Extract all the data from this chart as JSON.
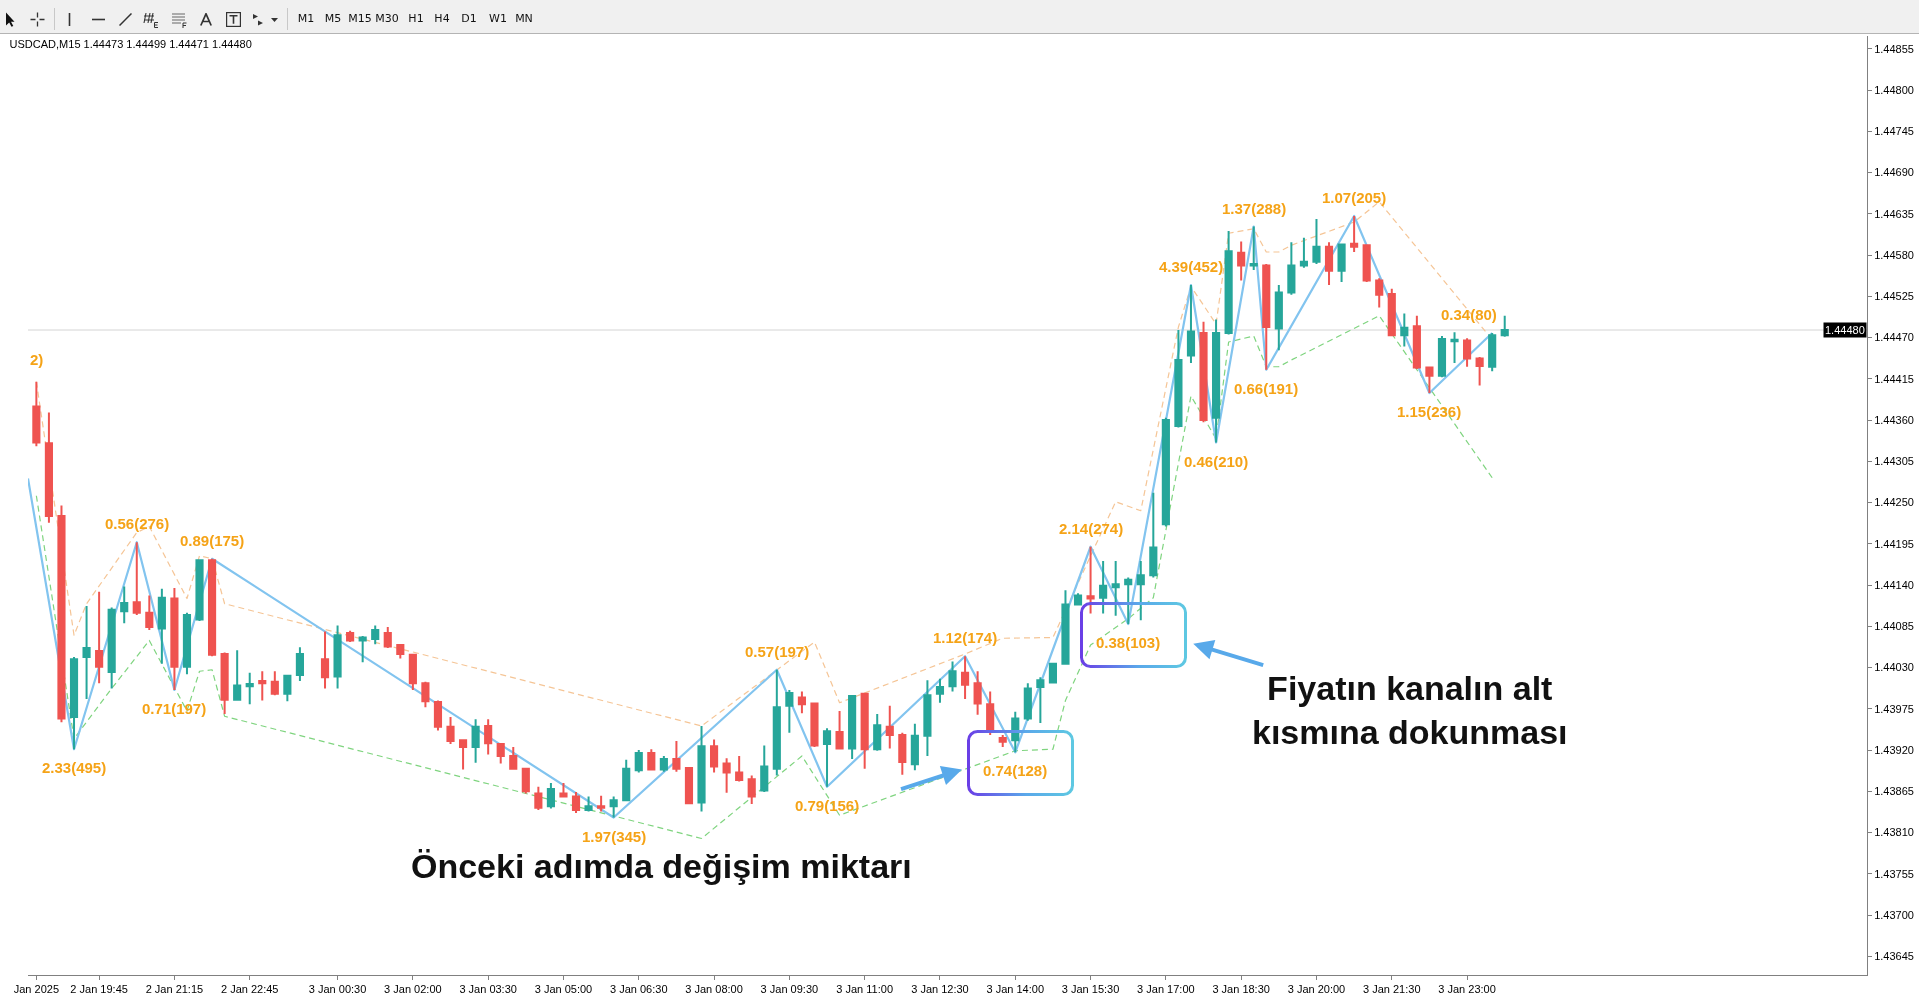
{
  "chart_data": {
    "type": "candlestick",
    "title": "USDCAD,M15 1.44473 1.44499 1.44471 1.44480",
    "x": [
      "2025-01-02T18:30",
      "2025-01-02T18:45",
      "2025-01-02T19:00",
      "2025-01-02T19:15",
      "2025-01-02T19:30",
      "2025-01-02T19:45",
      "2025-01-02T20:00",
      "2025-01-02T20:15",
      "2025-01-02T20:30",
      "2025-01-02T20:45",
      "2025-01-02T21:00",
      "2025-01-02T21:15",
      "2025-01-02T21:30",
      "2025-01-02T21:45",
      "2025-01-02T22:00",
      "2025-01-02T22:15",
      "2025-01-02T22:30",
      "2025-01-02T22:45",
      "2025-01-02T23:00",
      "2025-01-02T23:15",
      "2025-01-02T23:30",
      "2025-01-02T23:45",
      "2025-01-03T00:15",
      "2025-01-03T00:30",
      "2025-01-03T00:45",
      "2025-01-03T01:00",
      "2025-01-03T01:15",
      "2025-01-03T01:30",
      "2025-01-03T01:45",
      "2025-01-03T02:00",
      "2025-01-03T02:15",
      "2025-01-03T02:30",
      "2025-01-03T02:45",
      "2025-01-03T03:00",
      "2025-01-03T03:15",
      "2025-01-03T03:30",
      "2025-01-03T03:45",
      "2025-01-03T04:00",
      "2025-01-03T04:15",
      "2025-01-03T04:30",
      "2025-01-03T04:45",
      "2025-01-03T05:00",
      "2025-01-03T05:15",
      "2025-01-03T05:30",
      "2025-01-03T05:45",
      "2025-01-03T06:00",
      "2025-01-03T06:15",
      "2025-01-03T06:30",
      "2025-01-03T06:45",
      "2025-01-03T07:00",
      "2025-01-03T07:15",
      "2025-01-03T07:30",
      "2025-01-03T07:45",
      "2025-01-03T08:00",
      "2025-01-03T08:15",
      "2025-01-03T08:30",
      "2025-01-03T08:45",
      "2025-01-03T09:00",
      "2025-01-03T09:15",
      "2025-01-03T09:30",
      "2025-01-03T09:45",
      "2025-01-03T10:00",
      "2025-01-03T10:15",
      "2025-01-03T10:30",
      "2025-01-03T10:45",
      "2025-01-03T11:00",
      "2025-01-03T11:15",
      "2025-01-03T11:30",
      "2025-01-03T11:45",
      "2025-01-03T12:00",
      "2025-01-03T12:15",
      "2025-01-03T12:30",
      "2025-01-03T12:45",
      "2025-01-03T13:00",
      "2025-01-03T13:15",
      "2025-01-03T13:30",
      "2025-01-03T13:45",
      "2025-01-03T14:00",
      "2025-01-03T14:15",
      "2025-01-03T14:30",
      "2025-01-03T14:45",
      "2025-01-03T15:00",
      "2025-01-03T15:15",
      "2025-01-03T15:30",
      "2025-01-03T15:45",
      "2025-01-03T16:00",
      "2025-01-03T16:15",
      "2025-01-03T16:30",
      "2025-01-03T16:45",
      "2025-01-03T17:00",
      "2025-01-03T17:15",
      "2025-01-03T17:30",
      "2025-01-03T17:45",
      "2025-01-03T18:00",
      "2025-01-03T18:15",
      "2025-01-03T18:30",
      "2025-01-03T18:45",
      "2025-01-03T19:00",
      "2025-01-03T19:15",
      "2025-01-03T19:30",
      "2025-01-03T19:45",
      "2025-01-03T20:00",
      "2025-01-03T20:15",
      "2025-01-03T20:30",
      "2025-01-03T20:45",
      "2025-01-03T21:00",
      "2025-01-03T21:15",
      "2025-01-03T21:30",
      "2025-01-03T21:45",
      "2025-01-03T22:00",
      "2025-01-03T22:15",
      "2025-01-03T22:30",
      "2025-01-03T22:45",
      "2025-01-03T23:00",
      "2025-01-03T23:15",
      "2025-01-03T23:30",
      "2025-01-03T23:45"
    ],
    "ohlc": [
      [
        1.44378,
        1.44411,
        1.44325,
        1.4433
      ],
      [
        1.44329,
        1.4437,
        1.44223,
        1.44232
      ],
      [
        1.44232,
        1.44246,
        1.43957,
        1.43962
      ],
      [
        1.43964,
        1.44044,
        1.43921,
        1.44041
      ],
      [
        1.44044,
        1.44112,
        1.43988,
        1.44056
      ],
      [
        1.44052,
        1.44131,
        1.44009,
        1.44031
      ],
      [
        1.44024,
        1.4411,
        1.44002,
        1.44107
      ],
      [
        1.44105,
        1.44138,
        1.44089,
        1.44116
      ],
      [
        1.44117,
        1.44197,
        1.441,
        1.44103
      ],
      [
        1.44103,
        1.44126,
        1.4408,
        1.44084
      ],
      [
        1.44082,
        1.44135,
        1.44035,
        1.44123
      ],
      [
        1.44122,
        1.44136,
        1.44,
        1.44031
      ],
      [
        1.44031,
        1.44103,
        1.44021,
        1.441
      ],
      [
        1.44094,
        1.44174,
        1.44092,
        1.44173
      ],
      [
        1.44173,
        1.44175,
        1.44045,
        1.44047
      ],
      [
        1.44048,
        1.4405,
        1.43968,
        1.43987
      ],
      [
        1.43987,
        1.44053,
        1.43986,
        1.44006
      ],
      [
        1.44005,
        1.44023,
        1.43981,
        1.44008
      ],
      [
        1.44012,
        1.44025,
        1.43986,
        1.44009
      ],
      [
        1.44011,
        1.44025,
        1.43993,
        1.43995
      ],
      [
        1.43995,
        1.4402,
        1.43985,
        1.44019
      ],
      [
        1.4402,
        1.44057,
        1.44012,
        1.44048
      ],
      [
        1.44041,
        1.44078,
        1.44002,
        1.44017
      ],
      [
        1.44018,
        1.44086,
        1.44002,
        1.44073
      ],
      [
        1.44076,
        1.44079,
        1.44064,
        1.44066
      ],
      [
        1.44066,
        1.44072,
        1.44037,
        1.4407
      ],
      [
        1.44068,
        1.44086,
        1.44061,
        1.4408
      ],
      [
        1.44076,
        1.44084,
        1.44056,
        1.44058
      ],
      [
        1.4406,
        1.44061,
        1.44042,
        1.44048
      ],
      [
        1.44047,
        1.44048,
        1.44,
        1.44009
      ],
      [
        1.44009,
        1.44011,
        1.43977,
        1.43985
      ],
      [
        1.43984,
        1.43986,
        1.43946,
        1.43951
      ],
      [
        1.43951,
        1.43964,
        1.43928,
        1.43932
      ],
      [
        1.43933,
        1.43934,
        1.43894,
        1.43924
      ],
      [
        1.43924,
        1.43961,
        1.43903,
        1.43951
      ],
      [
        1.43952,
        1.43961,
        1.43914,
        1.43929
      ],
      [
        1.43928,
        1.43929,
        1.43902,
        1.43912
      ],
      [
        1.43912,
        1.43924,
        1.43894,
        1.43895
      ],
      [
        1.43895,
        1.43896,
        1.43862,
        1.43865
      ],
      [
        1.43862,
        1.43871,
        1.4384,
        1.43843
      ],
      [
        1.43845,
        1.43876,
        1.43842,
        1.43868
      ],
      [
        1.43862,
        1.43876,
        1.43857,
        1.43858
      ],
      [
        1.43858,
        1.43864,
        1.43836,
        1.4384
      ],
      [
        1.4384,
        1.43858,
        1.43838,
        1.43845
      ],
      [
        1.43845,
        1.43859,
        1.43838,
        1.43843
      ],
      [
        1.43845,
        1.43858,
        1.4383,
        1.43853
      ],
      [
        1.43853,
        1.43907,
        1.43852,
        1.43895
      ],
      [
        1.43893,
        1.4392,
        1.4389,
        1.43916
      ],
      [
        1.43916,
        1.43921,
        1.43893,
        1.43894
      ],
      [
        1.43894,
        1.43912,
        1.43891,
        1.43908
      ],
      [
        1.43908,
        1.43932,
        1.43891,
        1.43895
      ],
      [
        1.43896,
        1.43897,
        1.43848,
        1.43849
      ],
      [
        1.4385,
        1.43952,
        1.43838,
        1.43925
      ],
      [
        1.43925,
        1.43934,
        1.4389,
        1.43898
      ],
      [
        1.43902,
        1.43909,
        1.43863,
        1.4389
      ],
      [
        1.4389,
        1.43912,
        1.43878,
        1.4388
      ],
      [
        1.43881,
        1.43886,
        1.43848,
        1.43858
      ],
      [
        1.43866,
        1.43926,
        1.43864,
        1.43898
      ],
      [
        1.43895,
        1.44027,
        1.43886,
        1.43977
      ],
      [
        1.43979,
        1.44,
        1.43943,
        1.43996
      ],
      [
        1.4399,
        1.43998,
        1.43969,
        1.43981
      ],
      [
        1.43982,
        1.43983,
        1.43924,
        1.43926
      ],
      [
        1.43928,
        1.43949,
        1.43871,
        1.43945
      ],
      [
        1.43944,
        1.43972,
        1.43921,
        1.43922
      ],
      [
        1.43922,
        1.43993,
        1.43908,
        1.43992
      ],
      [
        1.43995,
        1.43996,
        1.43895,
        1.43921
      ],
      [
        1.43921,
        1.43968,
        1.43919,
        1.43953
      ],
      [
        1.43951,
        1.43979,
        1.43922,
        1.4394
      ],
      [
        1.4394,
        1.43943,
        1.43887,
        1.43904
      ],
      [
        1.43901,
        1.43955,
        1.43893,
        1.43939
      ],
      [
        1.43939,
        1.44013,
        1.43912,
        1.43993
      ],
      [
        1.43995,
        1.44015,
        1.43983,
        1.44004
      ],
      [
        1.44005,
        1.44038,
        1.43998,
        1.44025
      ],
      [
        1.44023,
        1.44045,
        1.43988,
        1.44007
      ],
      [
        1.44009,
        1.44025,
        1.43967,
        1.43982
      ],
      [
        1.43981,
        1.43998,
        1.4394,
        1.43945
      ],
      [
        1.43936,
        1.4394,
        1.43924,
        1.43931
      ],
      [
        1.43933,
        1.43971,
        1.43917,
        1.43962
      ],
      [
        1.43962,
        1.44009,
        1.43959,
        1.44002
      ],
      [
        1.44004,
        1.44017,
        1.43956,
        1.44013
      ],
      [
        1.4401,
        1.44036,
        1.44009,
        1.44035
      ],
      [
        1.44035,
        1.44133,
        1.44034,
        1.44114
      ],
      [
        1.44114,
        1.44129,
        1.44113,
        1.44126
      ],
      [
        1.44125,
        1.44191,
        1.44102,
        1.44122
      ],
      [
        1.44123,
        1.44172,
        1.44102,
        1.44139
      ],
      [
        1.44137,
        1.44172,
        1.44099,
        1.44141
      ],
      [
        1.44141,
        1.4415,
        1.44088,
        1.44147
      ],
      [
        1.44141,
        1.44172,
        1.44093,
        1.44153
      ],
      [
        1.44153,
        1.44263,
        1.4415,
        1.4419
      ],
      [
        1.44221,
        1.44363,
        1.44218,
        1.4436
      ],
      [
        1.44352,
        1.4448,
        1.4435,
        1.4444
      ],
      [
        1.44446,
        1.4454,
        1.44436,
        1.44478
      ],
      [
        1.44476,
        1.44491,
        1.44357,
        1.4436
      ],
      [
        1.44363,
        1.44494,
        1.4433,
        1.44476
      ],
      [
        1.44476,
        1.44612,
        1.44474,
        1.44585
      ],
      [
        1.44583,
        1.44598,
        1.44546,
        1.44566
      ],
      [
        1.44566,
        1.44618,
        1.4456,
        1.44568
      ],
      [
        1.44566,
        1.44568,
        1.44427,
        1.44484
      ],
      [
        1.44482,
        1.4454,
        1.44453,
        1.4453
      ],
      [
        1.4453,
        1.44597,
        1.44527,
        1.44566
      ],
      [
        1.44566,
        1.44603,
        1.44563,
        1.44571
      ],
      [
        1.44571,
        1.44628,
        1.44568,
        1.44591
      ],
      [
        1.44591,
        1.44597,
        1.4454,
        1.44559
      ],
      [
        1.44559,
        1.44595,
        1.44544,
        1.44594
      ],
      [
        1.44595,
        1.44632,
        1.44584,
        1.44591
      ],
      [
        1.44593,
        1.44594,
        1.44544,
        1.44546
      ],
      [
        1.44546,
        1.44549,
        1.4451,
        1.44527
      ],
      [
        1.44528,
        1.44535,
        1.44472,
        1.44473
      ],
      [
        1.44473,
        1.44502,
        1.44458,
        1.44483
      ],
      [
        1.44485,
        1.44499,
        1.44428,
        1.4443
      ],
      [
        1.4443,
        1.44431,
        1.44396,
        1.44419
      ],
      [
        1.44419,
        1.44472,
        1.44417,
        1.44468
      ],
      [
        1.44465,
        1.44477,
        1.44436,
        1.44467
      ],
      [
        1.44466,
        1.44469,
        1.44431,
        1.44442
      ],
      [
        1.44442,
        1.44444,
        1.44406,
        1.44432
      ],
      [
        1.44431,
        1.44476,
        1.44425,
        1.44473
      ],
      [
        1.44473,
        1.44499,
        1.44471,
        1.4448
      ]
    ],
    "colors": [
      "#ef5350",
      "#ef5350",
      "#ef5350",
      "#26a69a",
      "#26a69a",
      "#ef5350",
      "#26a69a",
      "#26a69a",
      "#ef5350",
      "#ef5350",
      "#26a69a",
      "#ef5350",
      "#26a69a",
      "#26a69a",
      "#ef5350",
      "#ef5350",
      "#26a69a",
      "#26a69a",
      "#ef5350",
      "#ef5350",
      "#26a69a",
      "#26a69a",
      "#ef5350",
      "#26a69a",
      "#ef5350",
      "#26a69a",
      "#26a69a",
      "#ef5350",
      "#ef5350",
      "#ef5350",
      "#ef5350",
      "#ef5350",
      "#ef5350",
      "#ef5350",
      "#26a69a",
      "#ef5350",
      "#ef5350",
      "#ef5350",
      "#ef5350",
      "#ef5350",
      "#26a69a",
      "#ef5350",
      "#ef5350",
      "#26a69a",
      "#ef5350",
      "#26a69a",
      "#26a69a",
      "#26a69a",
      "#ef5350",
      "#26a69a",
      "#ef5350",
      "#ef5350",
      "#26a69a",
      "#ef5350",
      "#ef5350",
      "#ef5350",
      "#ef5350",
      "#26a69a",
      "#26a69a",
      "#26a69a",
      "#ef5350",
      "#ef5350",
      "#26a69a",
      "#ef5350",
      "#26a69a",
      "#ef5350",
      "#26a69a",
      "#ef5350",
      "#ef5350",
      "#26a69a",
      "#26a69a",
      "#26a69a",
      "#26a69a",
      "#ef5350",
      "#ef5350",
      "#ef5350",
      "#ef5350",
      "#26a69a",
      "#26a69a",
      "#26a69a",
      "#26a69a",
      "#26a69a",
      "#26a69a",
      "#ef5350",
      "#26a69a",
      "#26a69a",
      "#26a69a",
      "#26a69a",
      "#26a69a",
      "#26a69a",
      "#26a69a",
      "#26a69a",
      "#ef5350",
      "#26a69a",
      "#26a69a",
      "#ef5350",
      "#26a69a",
      "#ef5350",
      "#26a69a",
      "#26a69a",
      "#26a69a",
      "#26a69a",
      "#ef5350",
      "#26a69a",
      "#ef5350",
      "#ef5350",
      "#ef5350",
      "#ef5350",
      "#26a69a",
      "#ef5350",
      "#ef5350",
      "#26a69a",
      "#26a69a",
      "#ef5350",
      "#ef5350",
      "#26a69a",
      "#26a69a"
    ],
    "series": [
      {
        "type": "line",
        "color": "#f5c596",
        "line_style": "dashed",
        "x": [
          "2025-01-02T18:30",
          "2025-01-02T19:15",
          "2025-01-02T19:30",
          "2025-01-02T20:30",
          "2025-01-02T20:45",
          "2025-01-02T21:30",
          "2025-01-02T21:45",
          "2025-01-02T22:00",
          "2025-01-02T22:15",
          "2025-01-03T07:45",
          "2025-01-03T10:00",
          "2025-01-03T10:30",
          "2025-01-03T13:00",
          "2025-01-03T13:45",
          "2025-01-03T14:45",
          "2025-01-03T16:00",
          "2025-01-03T16:30",
          "2025-01-03T17:15",
          "2025-01-03T17:30",
          "2025-01-03T18:00",
          "2025-01-03T18:15",
          "2025-01-03T18:45",
          "2025-01-03T19:00",
          "2025-01-03T19:15",
          "2025-01-03T19:30",
          "2025-01-03T20:45",
          "2025-01-03T21:15",
          "2025-01-03T23:22"
        ],
        "values": [
          1.44411,
          1.44073,
          1.44115,
          1.4421,
          1.44218,
          1.44122,
          1.44179,
          1.44175,
          1.44115,
          1.43952,
          1.44064,
          1.43983,
          1.44048,
          1.44069,
          1.4407,
          1.44251,
          1.44239,
          1.44484,
          1.44538,
          1.44488,
          1.44609,
          1.44615,
          1.44584,
          1.44584,
          1.44593,
          1.44624,
          1.44651,
          1.44478
        ]
      },
      {
        "type": "line",
        "color": "#7fd47f",
        "line_style": "dashed",
        "x": [
          "2025-01-02T18:30",
          "2025-01-02T19:15",
          "2025-01-02T20:00",
          "2025-01-02T20:45",
          "2025-01-02T21:30",
          "2025-01-02T21:45",
          "2025-01-02T22:00",
          "2025-01-02T22:15",
          "2025-01-03T07:45",
          "2025-01-03T09:45",
          "2025-01-03T10:30",
          "2025-01-03T14:00",
          "2025-01-03T14:45",
          "2025-01-03T15:00",
          "2025-01-03T15:30",
          "2025-01-03T16:15",
          "2025-01-03T16:45",
          "2025-01-03T17:30",
          "2025-01-03T18:00",
          "2025-01-03T18:15",
          "2025-01-03T18:45",
          "2025-01-03T19:00",
          "2025-01-03T19:15",
          "2025-01-03T19:30",
          "2025-01-03T21:15",
          "2025-01-03T23:30"
        ],
        "values": [
          1.44259,
          1.43935,
          1.44002,
          1.44066,
          1.43972,
          1.44025,
          1.44027,
          1.43965,
          1.43802,
          1.43912,
          1.43833,
          1.43919,
          1.43921,
          1.43986,
          1.4406,
          1.44095,
          1.44123,
          1.44392,
          1.44335,
          1.44464,
          1.44472,
          1.44431,
          1.44431,
          1.4444,
          1.44499,
          1.44283
        ]
      },
      {
        "type": "line",
        "color": "#82c4ef",
        "line_style": "solid",
        "x": [
          "2025-01-02T18:20",
          "2025-01-02T19:15",
          "2025-01-02T20:30",
          "2025-01-02T21:15",
          "2025-01-02T22:00",
          "2025-01-03T06:00",
          "2025-01-03T09:15",
          "2025-01-03T10:15",
          "2025-01-03T13:00",
          "2025-01-03T14:00",
          "2025-01-03T15:30",
          "2025-01-03T16:15",
          "2025-01-03T17:30",
          "2025-01-03T18:00",
          "2025-01-03T18:45",
          "2025-01-03T19:00",
          "2025-01-03T20:45",
          "2025-01-03T22:15",
          "2025-01-03T23:30"
        ],
        "values": [
          1.44282,
          1.43921,
          1.44197,
          1.44,
          1.44175,
          1.4383,
          1.44027,
          1.43871,
          1.44045,
          1.43917,
          1.44191,
          1.44088,
          1.4454,
          1.4433,
          1.44618,
          1.44427,
          1.44632,
          1.44396,
          1.44476
        ]
      }
    ],
    "xlim": [
      "2025-01-02T18:20",
      "2025-01-04T06:58"
    ],
    "xticks": [
      {
        "value": "2025-01-02T18:30",
        "label": "Jan 2025"
      },
      {
        "value": "2025-01-02T19:45",
        "label": "2 Jan 19:45"
      },
      {
        "value": "2025-01-02T21:15",
        "label": "2 Jan 21:15"
      },
      {
        "value": "2025-01-02T22:45",
        "label": "2 Jan 22:45"
      },
      {
        "value": "2025-01-03T00:30",
        "label": "3 Jan 00:30"
      },
      {
        "value": "2025-01-03T02:00",
        "label": "3 Jan 02:00"
      },
      {
        "value": "2025-01-03T03:30",
        "label": "3 Jan 03:30"
      },
      {
        "value": "2025-01-03T05:00",
        "label": "3 Jan 05:00"
      },
      {
        "value": "2025-01-03T06:30",
        "label": "3 Jan 06:30"
      },
      {
        "value": "2025-01-03T08:00",
        "label": "3 Jan 08:00"
      },
      {
        "value": "2025-01-03T09:30",
        "label": "3 Jan 09:30"
      },
      {
        "value": "2025-01-03T11:00",
        "label": "3 Jan 11:00"
      },
      {
        "value": "2025-01-03T12:30",
        "label": "3 Jan 12:30"
      },
      {
        "value": "2025-01-03T14:00",
        "label": "3 Jan 14:00"
      },
      {
        "value": "2025-01-03T15:30",
        "label": "3 Jan 15:30"
      },
      {
        "value": "2025-01-03T17:00",
        "label": "3 Jan 17:00"
      },
      {
        "value": "2025-01-03T18:30",
        "label": "3 Jan 18:30"
      },
      {
        "value": "2025-01-03T20:00",
        "label": "3 Jan 20:00"
      },
      {
        "value": "2025-01-03T21:30",
        "label": "3 Jan 21:30"
      },
      {
        "value": "2025-01-03T23:00",
        "label": "3 Jan 23:00"
      }
    ],
    "ylim": [
      1.4362,
      1.44872
    ],
    "yticks": [
      1.44855,
      {
        "value": 1.448,
        "label": "1.44800"
      },
      1.44745,
      {
        "value": 1.4469,
        "label": "1.44690"
      },
      1.44635,
      {
        "value": 1.4458,
        "label": "1.44580"
      },
      1.44525,
      {
        "value": 1.4447,
        "label": "1.44470"
      },
      1.44415,
      {
        "value": 1.4436,
        "label": "1.44360"
      },
      1.44305,
      {
        "value": 1.4425,
        "label": "1.44250"
      },
      1.44195,
      {
        "value": 1.4414,
        "label": "1.44140"
      },
      1.44085,
      {
        "value": 1.4403,
        "label": "1.44030"
      },
      1.43975,
      {
        "value": 1.4392,
        "label": "1.43920"
      },
      1.43865,
      {
        "value": 1.4381,
        "label": "1.43810"
      },
      1.43755,
      {
        "value": 1.437,
        "label": "1.43700"
      },
      1.43645
    ],
    "ref_lines": [
      {
        "axis": "y",
        "value": 1.4448,
        "label": "1.44480",
        "color": "#d4d4d4"
      }
    ],
    "annotations": [
      "M1",
      "M5",
      "M15",
      "M30",
      "H1",
      "H4",
      "D1",
      "W1",
      "MN",
      {
        "text": "2)",
        "x": "2025-01-02T18:30",
        "y": 1.44416
      },
      {
        "text": "2.33(495)",
        "x": "2025-01-02T19:15",
        "y": 1.43921
      },
      {
        "text": "0.56(276)",
        "x": "2025-01-02T20:30",
        "y": 1.44197
      },
      {
        "text": "0.71(197)",
        "x": "2025-01-02T21:15",
        "y": 1.44
      },
      {
        "text": "0.89(175)",
        "x": "2025-01-02T22:00",
        "y": 1.44175
      },
      {
        "text": "1.97(345)",
        "x": "2025-01-03T06:00",
        "y": 1.4383
      },
      {
        "text": "0.57(197)",
        "x": "2025-01-03T09:15",
        "y": 1.44027
      },
      {
        "text": "0.79(156)",
        "x": "2025-01-03T10:15",
        "y": 1.43871
      },
      {
        "text": "1.12(174)",
        "x": "2025-01-03T13:00",
        "y": 1.44045
      },
      {
        "text": "0.74(128)",
        "x": "2025-01-03T14:00",
        "y": 1.43917
      },
      {
        "text": "2.14(274)",
        "x": "2025-01-03T15:30",
        "y": 1.44191
      },
      {
        "text": "0.38(103)",
        "x": "2025-01-03T16:15",
        "y": 1.44088
      },
      {
        "text": "4.39(452)",
        "x": "2025-01-03T17:30",
        "y": 1.4454
      },
      {
        "text": "0.46(210)",
        "x": "2025-01-03T18:00",
        "y": 1.4433
      },
      {
        "text": "1.37(288)",
        "x": "2025-01-03T18:45",
        "y": 1.44618
      },
      {
        "text": "0.66(191)",
        "x": "2025-01-03T19:00",
        "y": 1.44427
      },
      {
        "text": "1.07(205)",
        "x": "2025-01-03T20:45",
        "y": 1.44632
      },
      {
        "text": "1.15(236)",
        "x": "2025-01-03T22:15",
        "y": 1.44396
      },
      {
        "text": "0.34(80)",
        "x": "2025-01-03T23:30",
        "y": 1.44476
      },
      {
        "text": "Fiyatın kanalın alt kısmına dokunması",
        "x": "2025-01-03T16:15",
        "y": 1.44088
      },
      {
        "text": "Önceki adımda değişim miktarı",
        "x": "2025-01-03T14:00",
        "y": 1.43917
      }
    ]
  }
}
